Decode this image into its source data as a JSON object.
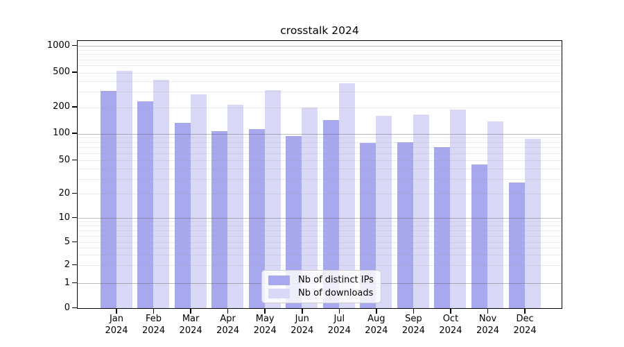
{
  "chart_data": {
    "type": "bar",
    "title": "crosstalk 2024",
    "categories": [
      "Jan 2024",
      "Feb 2024",
      "Mar 2024",
      "Apr 2024",
      "May 2024",
      "Jun 2024",
      "Jul 2024",
      "Aug 2024",
      "Sep 2024",
      "Oct 2024",
      "Nov 2024",
      "Dec 2024"
    ],
    "series": [
      {
        "name": "Nb of distinct IPs",
        "color": "#a8a8ef",
        "values": [
          310,
          235,
          133,
          106,
          112,
          94,
          143,
          78,
          80,
          70,
          45,
          27
        ]
      },
      {
        "name": "Nb of downloads",
        "color": "#d9d9f7",
        "values": [
          520,
          415,
          280,
          212,
          315,
          198,
          375,
          160,
          165,
          187,
          138,
          87
        ]
      }
    ],
    "yscale": "symlog",
    "ylim": [
      0,
      1000
    ],
    "yticks": [
      0,
      1,
      2,
      5,
      10,
      20,
      50,
      100,
      200,
      500,
      1000
    ],
    "grid": "horizontal; major gray lines at 1, 10, 100, 1000; faint minor log lines",
    "legend_position": "inside plot, lower center",
    "bar_colors": {
      "distinct_ips": "#a8a8ef",
      "downloads": "#d9d9f7"
    }
  }
}
